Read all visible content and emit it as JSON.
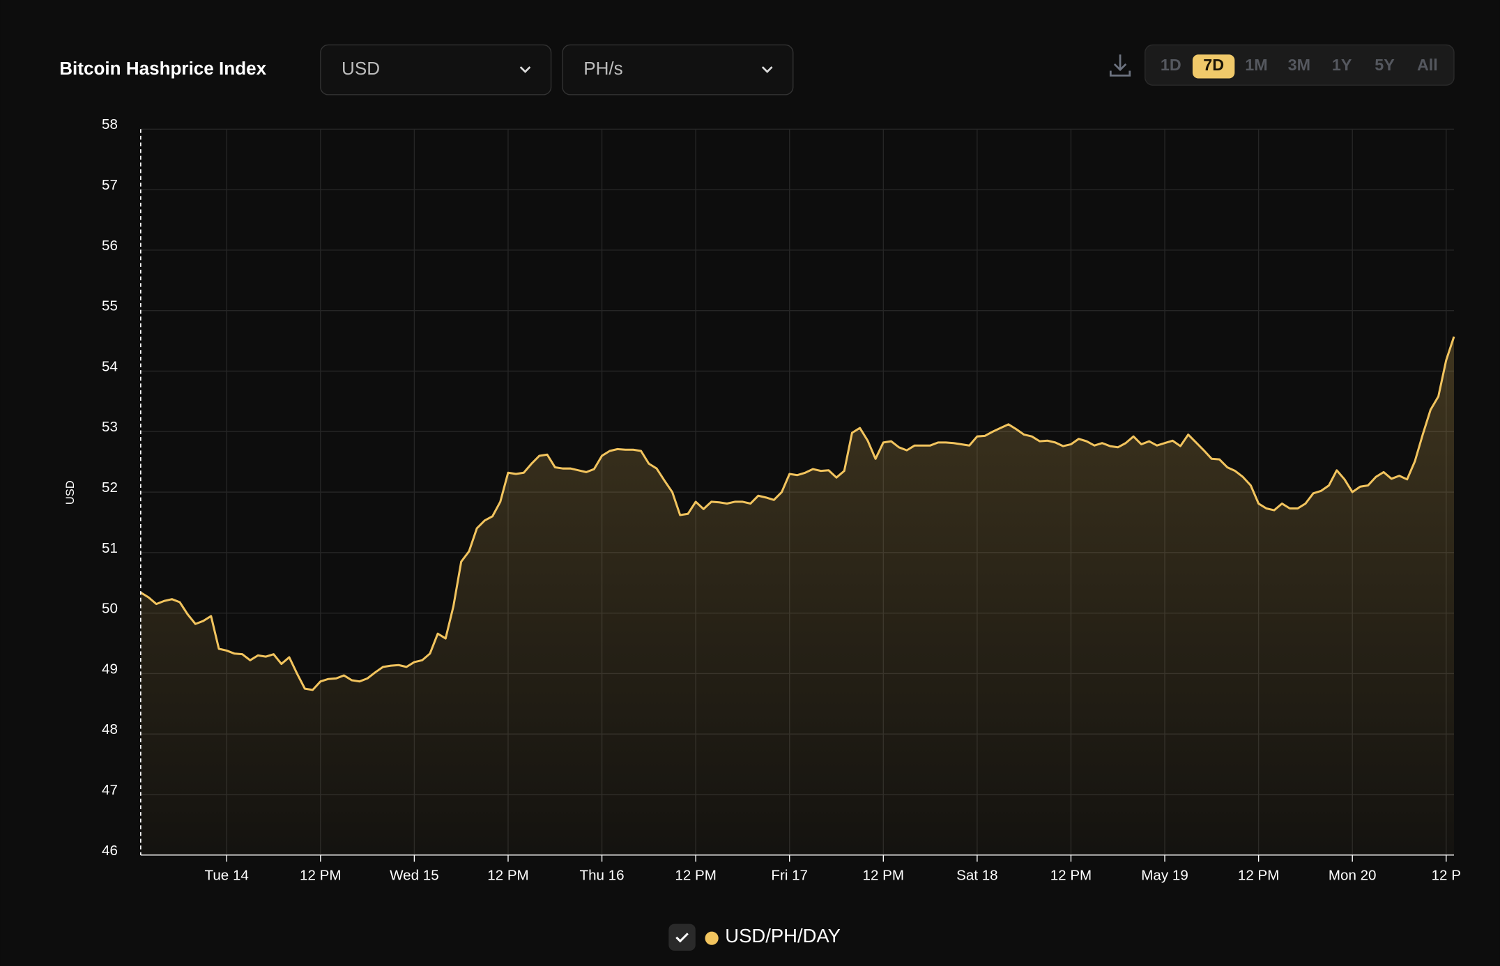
{
  "header": {
    "title": "Bitcoin Hashprice Index"
  },
  "controls": {
    "currency": "USD",
    "unit": "PH/s",
    "ranges": [
      "1D",
      "7D",
      "1M",
      "3M",
      "1Y",
      "5Y",
      "All"
    ],
    "active_range": "7D"
  },
  "chart_data": {
    "type": "area",
    "y_label": "USD",
    "ylim": [
      46,
      58
    ],
    "yticks": [
      46,
      47,
      48,
      49,
      50,
      51,
      52,
      53,
      54,
      55,
      56,
      57,
      58
    ],
    "xlim": [
      13,
      181
    ],
    "xticks": [
      {
        "value": 24,
        "label": "Tue 14"
      },
      {
        "value": 36,
        "label": "12 PM"
      },
      {
        "value": 48,
        "label": "Wed 15"
      },
      {
        "value": 60,
        "label": "12 PM"
      },
      {
        "value": 72,
        "label": "Thu 16"
      },
      {
        "value": 84,
        "label": "12 PM"
      },
      {
        "value": 96,
        "label": "Fri 17"
      },
      {
        "value": 108,
        "label": "12 PM"
      },
      {
        "value": 120,
        "label": "Sat 18"
      },
      {
        "value": 132,
        "label": "12 PM"
      },
      {
        "value": 144,
        "label": "May 19"
      },
      {
        "value": 156,
        "label": "12 PM"
      },
      {
        "value": 168,
        "label": "Mon 20"
      },
      {
        "value": 180,
        "label": "12 P"
      }
    ],
    "grid": true,
    "x": [
      13,
      14,
      15,
      16,
      17,
      18,
      19,
      20,
      21,
      22,
      23,
      24,
      25,
      26,
      27,
      28,
      29,
      30,
      31,
      32,
      33,
      34,
      35,
      36,
      37,
      38,
      39,
      40,
      41,
      42,
      43,
      44,
      45,
      46,
      47,
      48,
      49,
      50,
      51,
      52,
      53,
      54,
      55,
      56,
      57,
      58,
      59,
      60,
      61,
      62,
      63,
      64,
      65,
      66,
      67,
      68,
      69,
      70,
      71,
      72,
      73,
      74,
      75,
      76,
      77,
      78,
      79,
      80,
      81,
      82,
      83,
      84,
      85,
      86,
      87,
      88,
      89,
      90,
      91,
      92,
      93,
      94,
      95,
      96,
      97,
      98,
      99,
      100,
      101,
      102,
      103,
      104,
      105,
      106,
      107,
      108,
      109,
      110,
      111,
      112,
      113,
      114,
      115,
      116,
      117,
      118,
      119,
      120,
      121,
      122,
      123,
      124,
      125,
      126,
      127,
      128,
      129,
      130,
      131,
      132,
      133,
      134,
      135,
      136,
      137,
      138,
      139,
      140,
      141,
      142,
      143,
      144,
      145,
      146,
      147,
      148,
      149,
      150,
      151,
      152,
      153,
      154,
      155,
      156,
      157,
      158,
      159,
      160,
      161,
      162,
      163,
      164,
      165,
      166,
      167,
      168,
      169,
      170,
      171,
      172,
      173,
      174,
      175,
      176,
      177,
      178,
      179,
      180,
      181
    ],
    "series": [
      {
        "name": "USD/PH/DAY",
        "color": "#f2c45e",
        "values": [
          50.34,
          50.26,
          50.15,
          50.2,
          50.23,
          50.18,
          49.98,
          49.82,
          49.87,
          49.95,
          49.41,
          49.38,
          49.33,
          49.32,
          49.22,
          49.3,
          49.28,
          49.32,
          49.16,
          49.27,
          49.0,
          48.75,
          48.73,
          48.87,
          48.91,
          48.92,
          48.97,
          48.89,
          48.87,
          48.92,
          49.02,
          49.11,
          49.13,
          49.14,
          49.11,
          49.19,
          49.22,
          49.33,
          49.66,
          49.58,
          50.11,
          50.85,
          51.02,
          51.4,
          51.53,
          51.6,
          51.84,
          52.32,
          52.3,
          52.32,
          52.47,
          52.6,
          52.62,
          52.41,
          52.39,
          52.39,
          52.36,
          52.33,
          52.38,
          52.6,
          52.68,
          52.71,
          52.7,
          52.7,
          52.68,
          52.47,
          52.39,
          52.19,
          52.0,
          51.62,
          51.64,
          51.84,
          51.72,
          51.84,
          51.83,
          51.81,
          51.84,
          51.84,
          51.81,
          51.94,
          51.91,
          51.87,
          52.0,
          52.3,
          52.28,
          52.32,
          52.38,
          52.35,
          52.36,
          52.24,
          52.35,
          52.98,
          53.06,
          52.85,
          52.55,
          52.82,
          52.84,
          52.74,
          52.69,
          52.77,
          52.77,
          52.77,
          52.82,
          52.82,
          52.81,
          52.79,
          52.77,
          52.92,
          52.93,
          53.0,
          53.06,
          53.12,
          53.04,
          52.95,
          52.92,
          52.84,
          52.85,
          52.82,
          52.76,
          52.79,
          52.88,
          52.84,
          52.77,
          52.81,
          52.76,
          52.74,
          52.81,
          52.92,
          52.79,
          52.84,
          52.77,
          52.81,
          52.85,
          52.76,
          52.95,
          52.82,
          52.69,
          52.55,
          52.54,
          52.41,
          52.35,
          52.25,
          52.11,
          51.81,
          51.73,
          51.7,
          51.81,
          51.73,
          51.73,
          51.81,
          51.98,
          52.02,
          52.11,
          52.36,
          52.21,
          52.0,
          52.09,
          52.11,
          52.25,
          52.33,
          52.22,
          52.27,
          52.21,
          52.51,
          52.95,
          53.36,
          53.58,
          54.18,
          54.57
        ]
      }
    ]
  }
}
